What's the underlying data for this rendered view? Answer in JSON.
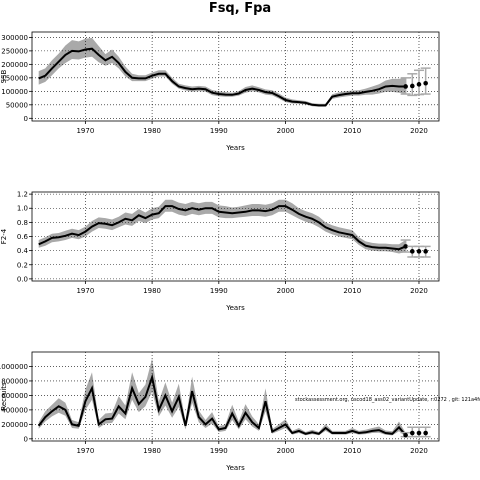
{
  "figure_title": "Fsq, Fpa",
  "footnote": "stockassessment.org, nscod18_ass02_variantUpdate, r:0272 , git: 121a4fc",
  "chart_data": [
    {
      "type": "line",
      "panel": "ssb",
      "ylabel": "SSB",
      "xlabel": "Years",
      "xlim": [
        1962,
        2023
      ],
      "ylim": [
        -10000,
        320000
      ],
      "xticks": [
        1970,
        1980,
        1990,
        2000,
        2010,
        2020
      ],
      "yticks": [
        0,
        50000,
        100000,
        150000,
        200000,
        250000,
        300000
      ],
      "yticklabels": [
        "0",
        "50000",
        "100000",
        "150000",
        "200000",
        "250000",
        "300000"
      ],
      "grid": true,
      "x": [
        1963,
        1964,
        1965,
        1966,
        1967,
        1968,
        1969,
        1970,
        1971,
        1972,
        1973,
        1974,
        1975,
        1976,
        1977,
        1978,
        1979,
        1980,
        1981,
        1982,
        1983,
        1984,
        1985,
        1986,
        1987,
        1988,
        1989,
        1990,
        1991,
        1992,
        1993,
        1994,
        1995,
        1996,
        1997,
        1998,
        1999,
        2000,
        2001,
        2002,
        2003,
        2004,
        2005,
        2006,
        2007,
        2008,
        2009,
        2010,
        2011,
        2012,
        2013,
        2014,
        2015,
        2016,
        2017,
        2018
      ],
      "estimate": [
        148000,
        158000,
        185000,
        210000,
        235000,
        250000,
        248000,
        255000,
        258000,
        235000,
        215000,
        228000,
        205000,
        172000,
        150000,
        148000,
        148000,
        158000,
        165000,
        165000,
        138000,
        118000,
        112000,
        108000,
        110000,
        108000,
        95000,
        90000,
        88000,
        87000,
        92000,
        105000,
        110000,
        105000,
        97000,
        94000,
        82000,
        68000,
        62000,
        60000,
        57000,
        50000,
        48000,
        48000,
        80000,
        86000,
        90000,
        93000,
        93000,
        98000,
        102000,
        108000,
        118000,
        120000,
        118000,
        118000
      ],
      "ci_low": [
        125000,
        135000,
        160000,
        185000,
        205000,
        220000,
        218000,
        225000,
        228000,
        208000,
        195000,
        205000,
        185000,
        155000,
        138000,
        138000,
        138000,
        147000,
        155000,
        155000,
        128000,
        110000,
        103000,
        99000,
        101000,
        99000,
        86000,
        82000,
        80000,
        80000,
        84000,
        95000,
        100000,
        96000,
        88000,
        85000,
        73000,
        60000,
        55000,
        54000,
        51000,
        45000,
        43000,
        43000,
        72000,
        77000,
        81000,
        84000,
        84000,
        87000,
        88000,
        92000,
        98000,
        98000,
        95000,
        90000
      ],
      "ci_high": [
        175000,
        185000,
        215000,
        240000,
        270000,
        290000,
        285000,
        295000,
        298000,
        268000,
        238000,
        255000,
        228000,
        192000,
        165000,
        160000,
        160000,
        170000,
        178000,
        178000,
        150000,
        128000,
        122000,
        118000,
        120000,
        118000,
        105000,
        100000,
        97000,
        95000,
        101000,
        116000,
        122000,
        115000,
        107000,
        104000,
        92000,
        77000,
        70000,
        67000,
        64000,
        56000,
        54000,
        54000,
        89000,
        96000,
        100000,
        103000,
        104000,
        110000,
        118000,
        126000,
        140000,
        146000,
        146000,
        150000
      ],
      "forecast": [
        {
          "x": 2018,
          "median": 118000,
          "low": 90000,
          "high": 150000
        },
        {
          "x": 2019,
          "median": 120000,
          "low": 85000,
          "high": 165000
        },
        {
          "x": 2020,
          "median": 126000,
          "low": 88000,
          "high": 178000
        },
        {
          "x": 2021,
          "median": 130000,
          "low": 90000,
          "high": 186000
        }
      ]
    },
    {
      "type": "line",
      "panel": "fbar",
      "ylabel": "F2-4",
      "xlabel": "Years",
      "xlim": [
        1962,
        2023
      ],
      "ylim": [
        -0.03,
        1.23
      ],
      "xticks": [
        1970,
        1980,
        1990,
        2000,
        2010,
        2020
      ],
      "yticks": [
        0,
        0.2,
        0.4,
        0.6,
        0.8,
        1.0,
        1.2
      ],
      "yticklabels": [
        "0.0",
        "0.2",
        "0.4",
        "0.6",
        "0.8",
        "1.0",
        "1.2"
      ],
      "grid": true,
      "x": [
        1963,
        1964,
        1965,
        1966,
        1967,
        1968,
        1969,
        1970,
        1971,
        1972,
        1973,
        1974,
        1975,
        1976,
        1977,
        1978,
        1979,
        1980,
        1981,
        1982,
        1983,
        1984,
        1985,
        1986,
        1987,
        1988,
        1989,
        1990,
        1991,
        1992,
        1993,
        1994,
        1995,
        1996,
        1997,
        1998,
        1999,
        2000,
        2001,
        2002,
        2003,
        2004,
        2005,
        2006,
        2007,
        2008,
        2009,
        2010,
        2011,
        2012,
        2013,
        2014,
        2015,
        2016,
        2017,
        2018
      ],
      "estimate": [
        0.49,
        0.53,
        0.58,
        0.59,
        0.61,
        0.64,
        0.62,
        0.67,
        0.74,
        0.79,
        0.78,
        0.76,
        0.8,
        0.85,
        0.83,
        0.9,
        0.86,
        0.91,
        0.93,
        1.03,
        1.03,
        0.99,
        0.97,
        1.0,
        0.98,
        1.0,
        1.0,
        0.95,
        0.94,
        0.93,
        0.94,
        0.95,
        0.97,
        0.97,
        0.96,
        0.98,
        1.03,
        1.03,
        0.98,
        0.92,
        0.88,
        0.85,
        0.8,
        0.73,
        0.69,
        0.66,
        0.64,
        0.62,
        0.53,
        0.47,
        0.45,
        0.44,
        0.44,
        0.43,
        0.42,
        0.46
      ],
      "ci_low": [
        0.44,
        0.47,
        0.52,
        0.53,
        0.55,
        0.58,
        0.56,
        0.6,
        0.67,
        0.72,
        0.71,
        0.69,
        0.73,
        0.77,
        0.75,
        0.82,
        0.79,
        0.84,
        0.86,
        0.95,
        0.95,
        0.91,
        0.89,
        0.92,
        0.9,
        0.92,
        0.92,
        0.87,
        0.86,
        0.86,
        0.87,
        0.88,
        0.89,
        0.89,
        0.88,
        0.9,
        0.95,
        0.95,
        0.9,
        0.85,
        0.81,
        0.78,
        0.73,
        0.67,
        0.63,
        0.6,
        0.58,
        0.56,
        0.48,
        0.42,
        0.4,
        0.39,
        0.39,
        0.38,
        0.36,
        0.38
      ],
      "ci_high": [
        0.55,
        0.59,
        0.64,
        0.65,
        0.68,
        0.71,
        0.69,
        0.74,
        0.82,
        0.87,
        0.86,
        0.84,
        0.88,
        0.94,
        0.92,
        0.99,
        0.94,
        1.0,
        1.02,
        1.12,
        1.12,
        1.08,
        1.06,
        1.09,
        1.07,
        1.09,
        1.09,
        1.04,
        1.03,
        1.01,
        1.02,
        1.04,
        1.06,
        1.06,
        1.05,
        1.07,
        1.12,
        1.12,
        1.07,
        1.0,
        0.96,
        0.93,
        0.88,
        0.8,
        0.76,
        0.73,
        0.71,
        0.69,
        0.59,
        0.53,
        0.51,
        0.5,
        0.5,
        0.49,
        0.49,
        0.55
      ],
      "forecast": [
        {
          "x": 2018,
          "median": 0.46,
          "low": 0.38,
          "high": 0.55
        },
        {
          "x": 2019,
          "median": 0.39,
          "low": 0.31,
          "high": 0.46
        },
        {
          "x": 2020,
          "median": 0.39,
          "low": 0.31,
          "high": 0.46
        },
        {
          "x": 2021,
          "median": 0.39,
          "low": 0.31,
          "high": 0.46
        }
      ]
    },
    {
      "type": "line",
      "panel": "recruitment",
      "ylabel": "Recruits",
      "xlabel": "Years",
      "xlim": [
        1962,
        2023
      ],
      "ylim": [
        -30000,
        1200000
      ],
      "xticks": [
        1970,
        1980,
        1990,
        2000,
        2010,
        2020
      ],
      "yticks": [
        0,
        200000,
        400000,
        600000,
        800000,
        1000000
      ],
      "yticklabels": [
        "0",
        "200000",
        "400000",
        "600000",
        "800000",
        "1000000"
      ],
      "grid": true,
      "x": [
        1963,
        1964,
        1965,
        1966,
        1967,
        1968,
        1969,
        1970,
        1971,
        1972,
        1973,
        1974,
        1975,
        1976,
        1977,
        1978,
        1979,
        1980,
        1981,
        1982,
        1983,
        1984,
        1985,
        1986,
        1987,
        1988,
        1989,
        1990,
        1991,
        1992,
        1993,
        1994,
        1995,
        1996,
        1997,
        1998,
        1999,
        2000,
        2001,
        2002,
        2003,
        2004,
        2005,
        2006,
        2007,
        2008,
        2009,
        2010,
        2011,
        2012,
        2013,
        2014,
        2015,
        2016,
        2017,
        2018
      ],
      "estimate": [
        180000,
        300000,
        380000,
        450000,
        400000,
        200000,
        180000,
        520000,
        700000,
        200000,
        270000,
        280000,
        450000,
        350000,
        700000,
        480000,
        580000,
        850000,
        400000,
        600000,
        380000,
        580000,
        180000,
        660000,
        300000,
        200000,
        280000,
        130000,
        150000,
        350000,
        180000,
        360000,
        230000,
        150000,
        520000,
        100000,
        150000,
        200000,
        80000,
        110000,
        70000,
        90000,
        70000,
        150000,
        80000,
        80000,
        80000,
        110000,
        80000,
        90000,
        110000,
        120000,
        80000,
        70000,
        160000,
        50000
      ],
      "ci_low": [
        140000,
        240000,
        310000,
        360000,
        320000,
        150000,
        140000,
        400000,
        540000,
        150000,
        210000,
        220000,
        350000,
        270000,
        540000,
        370000,
        450000,
        650000,
        310000,
        460000,
        290000,
        440000,
        130000,
        500000,
        230000,
        150000,
        210000,
        95000,
        110000,
        260000,
        130000,
        270000,
        170000,
        110000,
        380000,
        72000,
        110000,
        150000,
        58000,
        80000,
        50000,
        65000,
        50000,
        110000,
        58000,
        58000,
        58000,
        80000,
        58000,
        65000,
        80000,
        85000,
        55000,
        47000,
        105000,
        30000
      ],
      "ci_high": [
        230000,
        380000,
        470000,
        560000,
        500000,
        260000,
        230000,
        680000,
        920000,
        260000,
        350000,
        360000,
        590000,
        460000,
        920000,
        630000,
        750000,
        1110000,
        520000,
        780000,
        500000,
        760000,
        240000,
        860000,
        390000,
        260000,
        370000,
        175000,
        200000,
        470000,
        240000,
        480000,
        310000,
        200000,
        700000,
        135000,
        200000,
        270000,
        110000,
        150000,
        95000,
        125000,
        95000,
        205000,
        110000,
        110000,
        110000,
        150000,
        110000,
        125000,
        150000,
        170000,
        115000,
        105000,
        240000,
        85000
      ],
      "forecast": [
        {
          "x": 2018,
          "median": 50000,
          "low": 30000,
          "high": 85000
        },
        {
          "x": 2019,
          "median": 80000,
          "low": 30000,
          "high": 160000
        },
        {
          "x": 2020,
          "median": 80000,
          "low": 30000,
          "high": 160000
        },
        {
          "x": 2021,
          "median": 80000,
          "low": 30000,
          "high": 160000
        }
      ]
    }
  ]
}
